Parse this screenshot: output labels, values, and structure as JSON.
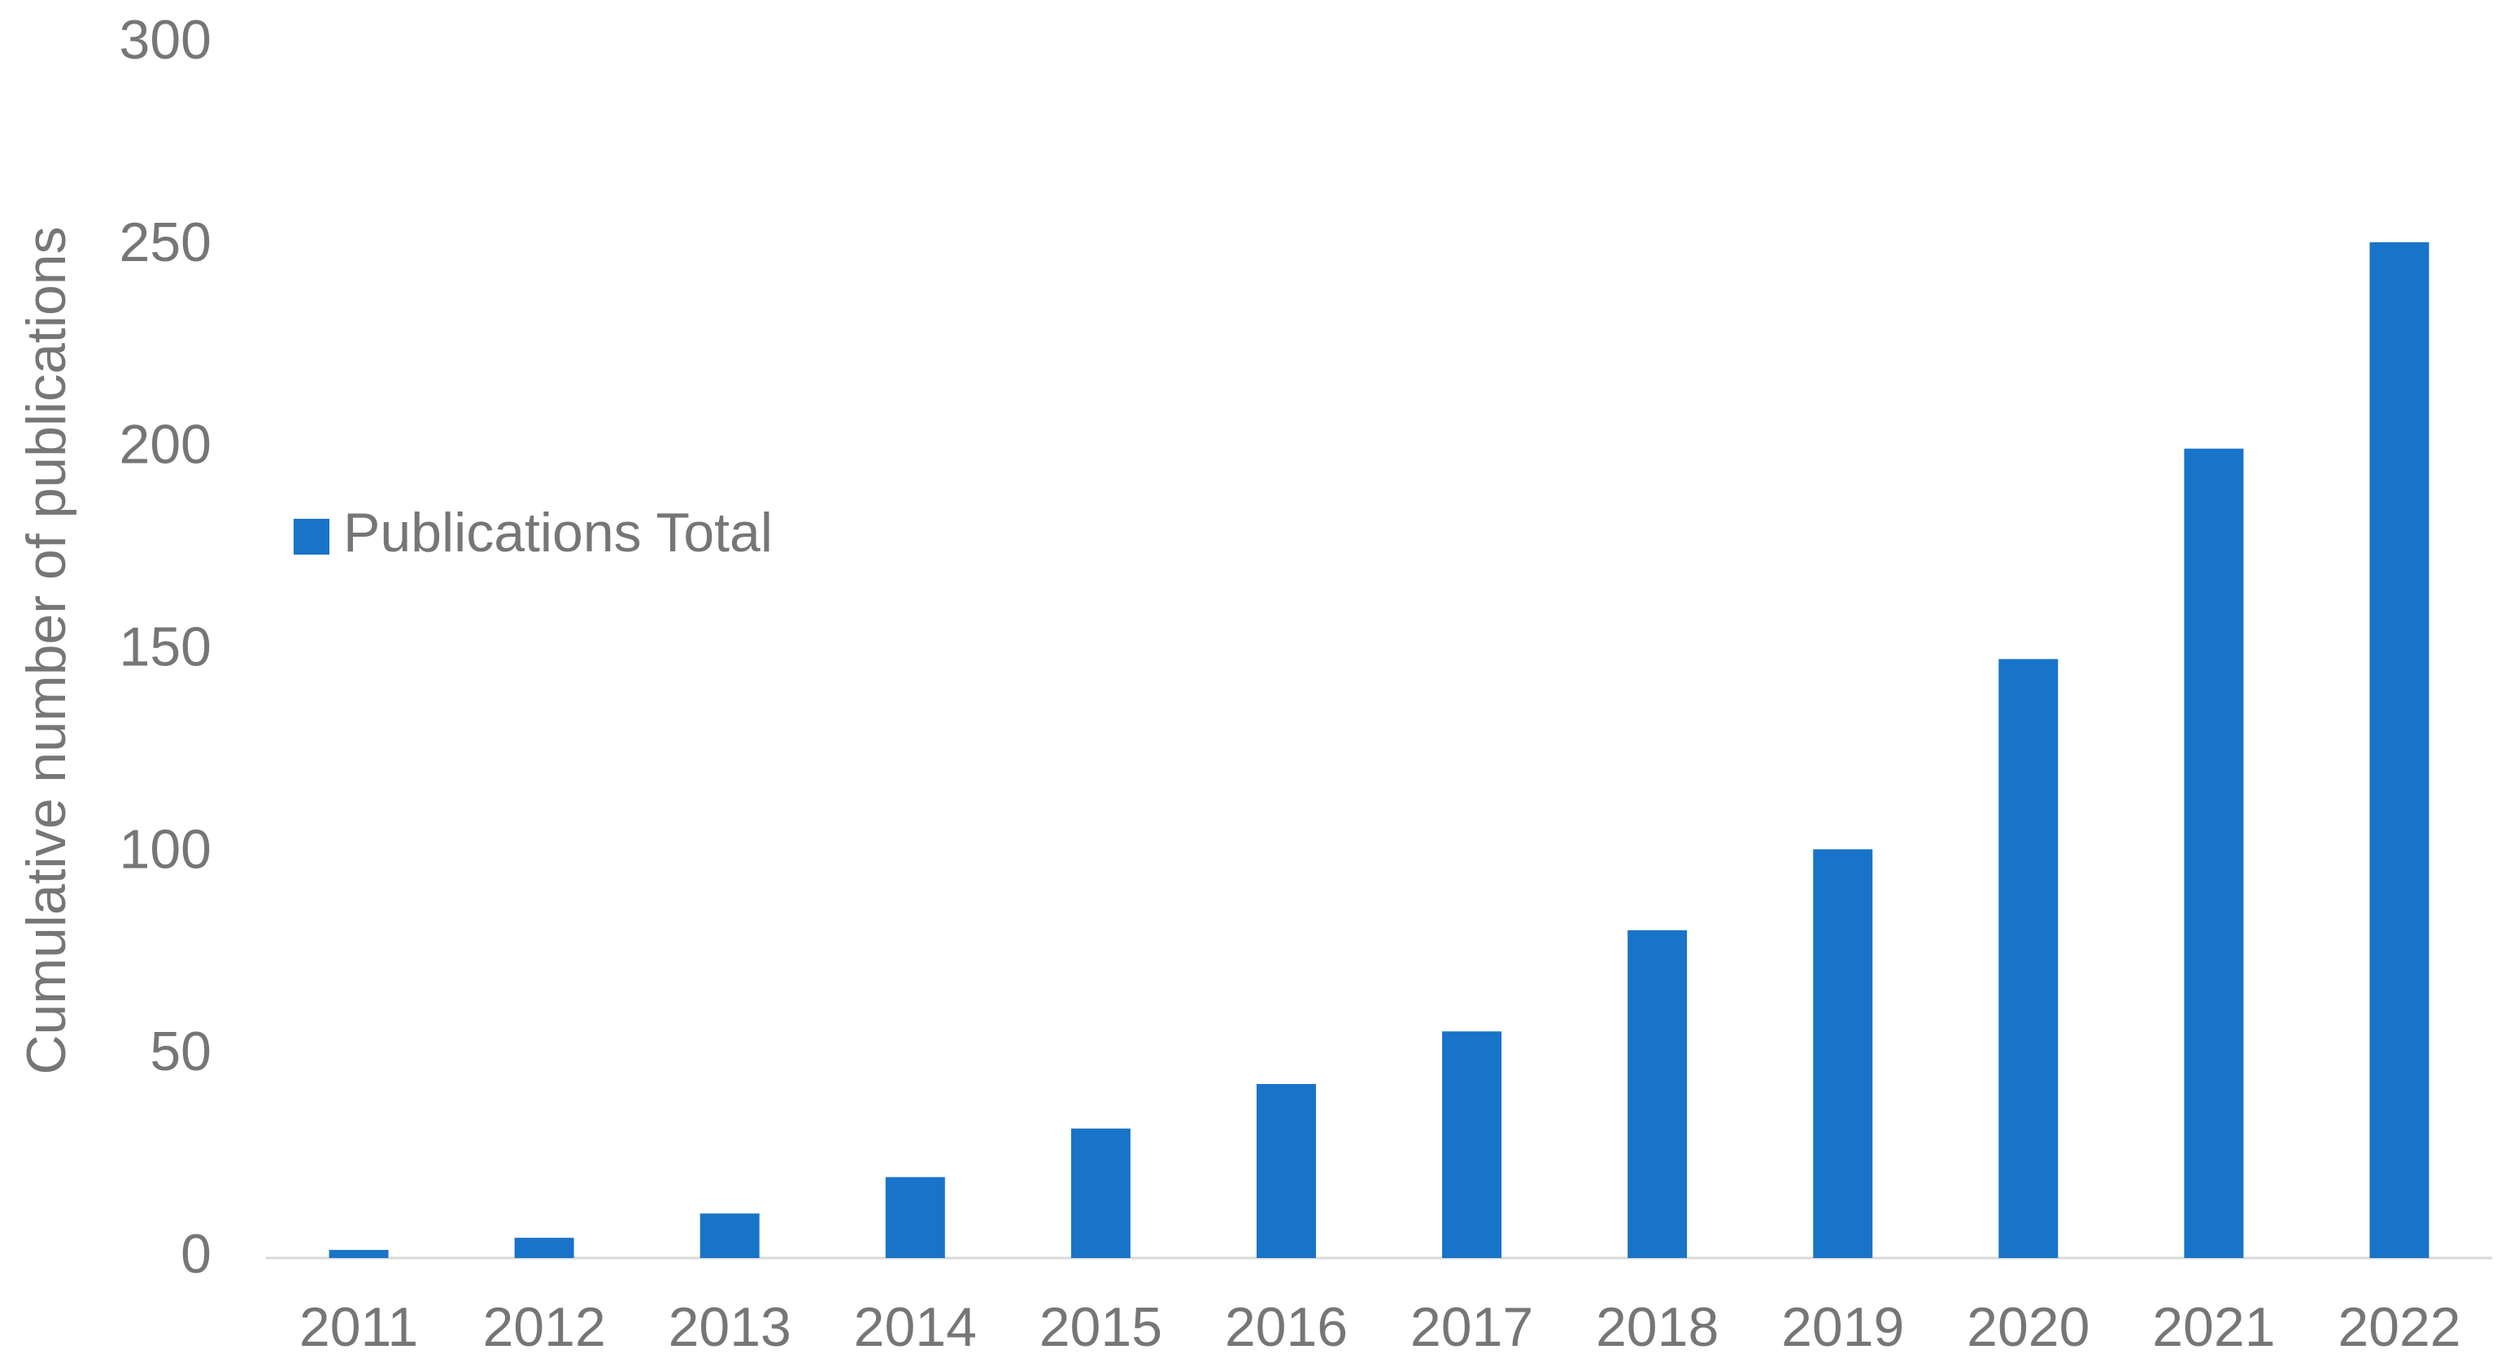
{
  "chart_data": {
    "type": "bar",
    "y_axis_label": "Cumulative number of publications",
    "categories": [
      "2011",
      "2012",
      "2013",
      "2014",
      "2015",
      "2016",
      "2017",
      "2018",
      "2019",
      "2020",
      "2021",
      "2022"
    ],
    "series": [
      {
        "name": "Publications Total",
        "color": "#1874c8",
        "values": [
          2,
          5,
          11,
          20,
          32,
          43,
          56,
          81,
          101,
          148,
          200,
          251
        ]
      }
    ],
    "ylim": [
      0,
      300
    ],
    "yticks": [
      0,
      50,
      100,
      150,
      200,
      250,
      300
    ],
    "grid": false,
    "legend": "left"
  }
}
